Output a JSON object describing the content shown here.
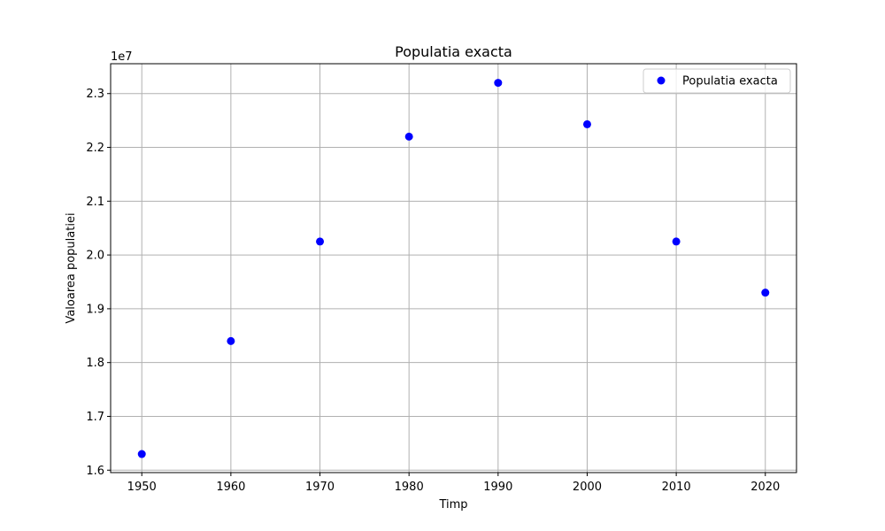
{
  "chart_data": {
    "type": "scatter",
    "title": "Populatia exacta",
    "xlabel": "Timp",
    "ylabel": "Valoarea populatiei",
    "y_offset_label": "1e7",
    "xlim": [
      1946.5,
      2023.5
    ],
    "ylim": [
      15955000.0,
      23555000.0
    ],
    "x_ticks": [
      1950,
      1960,
      1970,
      1980,
      1990,
      2000,
      2010,
      2020
    ],
    "x_tick_labels": [
      "1950",
      "1960",
      "1970",
      "1980",
      "1990",
      "2000",
      "2010",
      "2020"
    ],
    "y_ticks": [
      16000000.0,
      17000000.0,
      18000000.0,
      19000000.0,
      20000000.0,
      21000000.0,
      22000000.0,
      23000000.0
    ],
    "y_tick_labels": [
      "1.6",
      "1.7",
      "1.8",
      "1.9",
      "2.0",
      "2.1",
      "2.2",
      "2.3"
    ],
    "grid": true,
    "legend_position": "top-right",
    "series": [
      {
        "name": "Populatia exacta",
        "color": "#0000ff",
        "marker": "circle",
        "x": [
          1950,
          1960,
          1970,
          1980,
          1990,
          2000,
          2010,
          2020
        ],
        "y": [
          16300000,
          18400000,
          20250000,
          22200000,
          23200000,
          22430000,
          20250000,
          19300000
        ]
      }
    ]
  }
}
